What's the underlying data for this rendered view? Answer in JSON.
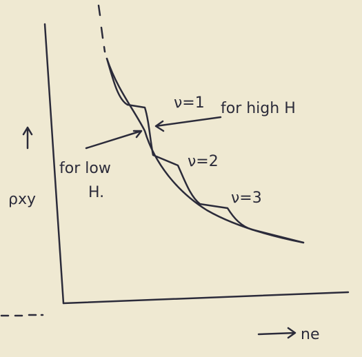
{
  "axes": {
    "y_label": "ρxy",
    "x_label": "ne"
  },
  "plateaus": [
    {
      "label": "ν=1"
    },
    {
      "label": "ν=2"
    },
    {
      "label": "ν=3"
    }
  ],
  "notes": {
    "high": "for high H",
    "low_1": "for low",
    "low_2": "H."
  }
}
